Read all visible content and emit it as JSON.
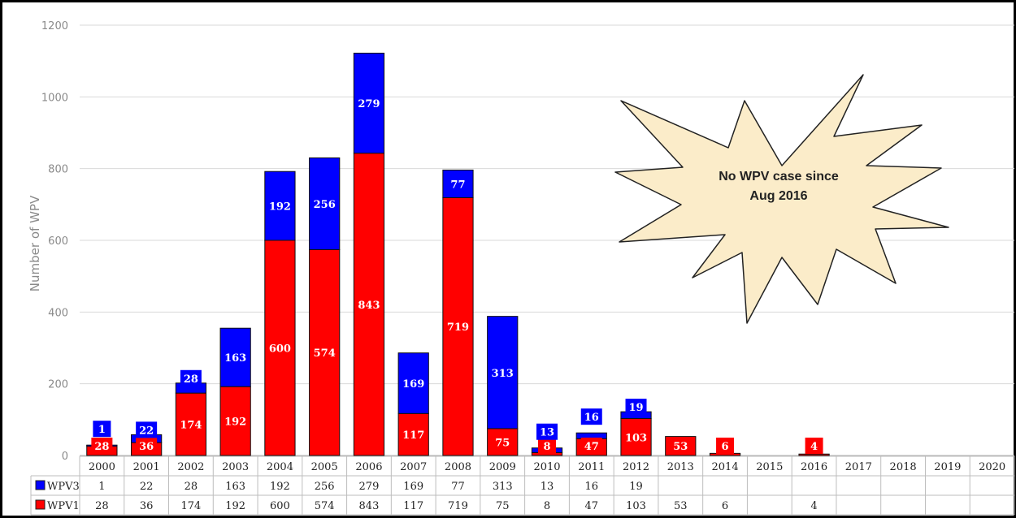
{
  "chart_data": {
    "type": "bar",
    "stacked": true,
    "ylabel": "Number of WPV",
    "ylim": [
      0,
      1200
    ],
    "yticks": [
      0,
      200,
      400,
      600,
      800,
      1000,
      1200
    ],
    "grid": true,
    "legend": "data table rows",
    "categories": [
      "2000",
      "2001",
      "2002",
      "2003",
      "2004",
      "2005",
      "2006",
      "2007",
      "2008",
      "2009",
      "2010",
      "2011",
      "2012",
      "2013",
      "2014",
      "2015",
      "2016",
      "2017",
      "2018",
      "2019",
      "2020"
    ],
    "series": [
      {
        "name": "WPV1",
        "color": "#ff0000",
        "values": [
          28,
          36,
          174,
          192,
          600,
          574,
          843,
          117,
          719,
          75,
          8,
          47,
          103,
          53,
          6,
          null,
          4,
          null,
          null,
          null,
          null
        ]
      },
      {
        "name": "WPV3",
        "color": "#0000ff",
        "values": [
          1,
          22,
          28,
          163,
          192,
          256,
          279,
          169,
          77,
          313,
          13,
          16,
          19,
          null,
          null,
          null,
          null,
          null,
          null,
          null,
          null
        ]
      }
    ],
    "annotation": "No WPV case since Aug 2016"
  }
}
